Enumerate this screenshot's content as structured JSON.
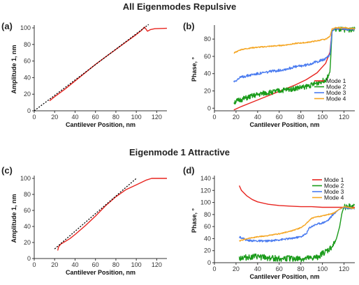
{
  "figure": {
    "top_title": "All Eigenmodes Repulsive",
    "bottom_title": "Eigenmode 1 Attractive"
  },
  "colors": {
    "mode1": "#e8241f",
    "mode2": "#1a9b1a",
    "mode3": "#4b7cf0",
    "mode4": "#f5a623",
    "guide": "#000000"
  },
  "chart_data": [
    {
      "id": "a",
      "panel_label": "(a)",
      "type": "line",
      "xlabel": "Cantilever Position, nm",
      "ylabel": "Amplitude 1, nm",
      "xlim": [
        0,
        130
      ],
      "ylim": [
        0,
        100
      ],
      "xticks": [
        "0",
        "20",
        "40",
        "60",
        "80",
        "100",
        "120"
      ],
      "yticks": [
        "0",
        "20",
        "40",
        "60",
        "80",
        "100"
      ],
      "grid": false,
      "series": [
        {
          "color": "#e8241f",
          "style": "solid",
          "x": [
            15,
            20,
            30,
            40,
            50,
            60,
            70,
            80,
            90,
            100,
            105,
            108,
            111,
            114,
            118,
            130
          ],
          "y": [
            12,
            17,
            26,
            36,
            46,
            56,
            65,
            74,
            83,
            92,
            97,
            101,
            96,
            98,
            99,
            99.5
          ]
        },
        {
          "color": "#000000",
          "style": "dotted",
          "x": [
            0,
            112
          ],
          "y": [
            0,
            104
          ]
        }
      ]
    },
    {
      "id": "b",
      "panel_label": "(b)",
      "type": "line",
      "xlabel": "Cantilever Position, nm",
      "ylabel": "Phase, °",
      "xlim": [
        0,
        130
      ],
      "ylim": [
        -3,
        93
      ],
      "xticks": [
        "0",
        "20",
        "40",
        "60",
        "80",
        "100",
        "120"
      ],
      "yticks": [
        "0",
        "20",
        "40",
        "60",
        "80"
      ],
      "grid": false,
      "legend_position": "bottom-right",
      "series": [
        {
          "name": "Mode 1",
          "color": "#e8241f",
          "x": [
            18,
            25,
            35,
            45,
            55,
            65,
            75,
            85,
            95,
            103,
            107,
            109,
            112,
            120,
            130
          ],
          "y": [
            -2,
            2,
            7,
            12,
            17,
            22,
            27,
            33,
            41,
            52,
            65,
            90,
            92,
            91,
            91
          ]
        },
        {
          "name": "Mode 2",
          "color": "#1a9b1a",
          "noise": 3,
          "x": [
            18,
            25,
            35,
            45,
            55,
            65,
            75,
            85,
            95,
            103,
            107,
            109,
            112,
            120,
            130
          ],
          "y": [
            7,
            10,
            14,
            17,
            19,
            21,
            23,
            25,
            29,
            33,
            42,
            90,
            91,
            91,
            91
          ]
        },
        {
          "name": "Mode 3",
          "color": "#4b7cf0",
          "noise": 1.5,
          "x": [
            18,
            25,
            35,
            45,
            55,
            65,
            75,
            85,
            95,
            103,
            107,
            109,
            112,
            120,
            130
          ],
          "y": [
            31,
            36,
            39,
            41,
            43,
            45,
            48,
            50,
            54,
            57,
            62,
            89,
            92,
            92,
            91
          ]
        },
        {
          "name": "Mode 4",
          "color": "#f5a623",
          "noise": 0.6,
          "x": [
            18,
            25,
            35,
            45,
            55,
            65,
            75,
            85,
            95,
            103,
            107,
            109,
            112,
            120,
            130
          ],
          "y": [
            64,
            68,
            70,
            71,
            72,
            73,
            75,
            76,
            78,
            80,
            83,
            92,
            93,
            93,
            92
          ]
        }
      ]
    },
    {
      "id": "c",
      "panel_label": "(c)",
      "type": "line",
      "xlabel": "Cantilever Position, nm",
      "ylabel": "Amplitude 1, nm",
      "xlim": [
        0,
        130
      ],
      "ylim": [
        0,
        100
      ],
      "xticks": [
        "0",
        "20",
        "40",
        "60",
        "80",
        "100",
        "120"
      ],
      "yticks": [
        "0",
        "20",
        "40",
        "60",
        "80",
        "100"
      ],
      "grid": false,
      "series": [
        {
          "color": "#e8241f",
          "style": "solid",
          "x": [
            23,
            24,
            26,
            30,
            35,
            40,
            50,
            60,
            70,
            80,
            90,
            100,
            105,
            110,
            115,
            120,
            130
          ],
          "y": [
            10,
            15,
            18,
            21,
            25,
            30,
            41,
            53,
            66,
            77,
            86,
            92,
            95,
            98,
            100,
            100,
            100
          ]
        },
        {
          "color": "#000000",
          "style": "dotted",
          "x": [
            20,
            100
          ],
          "y": [
            12,
            100
          ]
        }
      ]
    },
    {
      "id": "d",
      "panel_label": "(d)",
      "type": "line",
      "xlabel": "Cantilever Position, nm",
      "ylabel": "Phase, °",
      "xlim": [
        0,
        130
      ],
      "ylim": [
        0,
        140
      ],
      "xticks": [
        "0",
        "20",
        "40",
        "60",
        "80",
        "100",
        "120"
      ],
      "yticks": [
        "0",
        "20",
        "40",
        "60",
        "80",
        "100",
        "120",
        "140"
      ],
      "grid": false,
      "legend_position": "top-right",
      "series": [
        {
          "name": "Mode 1",
          "color": "#e8241f",
          "x": [
            23,
            25,
            30,
            35,
            40,
            50,
            60,
            70,
            80,
            90,
            100,
            110,
            120,
            130
          ],
          "y": [
            128,
            120,
            111,
            105,
            101,
            97,
            95,
            94,
            93,
            93,
            92,
            92,
            92,
            92
          ]
        },
        {
          "name": "Mode 2",
          "color": "#1a9b1a",
          "noise": 5,
          "x": [
            23,
            30,
            40,
            50,
            60,
            70,
            80,
            90,
            95,
            100,
            105,
            110,
            113,
            116,
            118,
            120,
            130
          ],
          "y": [
            8,
            9,
            10,
            8,
            7,
            7,
            6,
            7,
            9,
            15,
            20,
            28,
            40,
            60,
            82,
            93,
            93
          ]
        },
        {
          "name": "Mode 3",
          "color": "#4b7cf0",
          "noise": 1.5,
          "x": [
            23,
            26,
            30,
            40,
            50,
            60,
            70,
            80,
            85,
            88,
            92,
            95,
            100,
            105,
            110,
            115,
            120,
            130
          ],
          "y": [
            43,
            41,
            37,
            36,
            36,
            38,
            40,
            43,
            48,
            58,
            62,
            64,
            66,
            70,
            80,
            88,
            92,
            90
          ]
        },
        {
          "name": "Mode 4",
          "color": "#f5a623",
          "noise": 0.8,
          "x": [
            23,
            30,
            40,
            50,
            60,
            70,
            80,
            85,
            90,
            100,
            110,
            115,
            120,
            130
          ],
          "y": [
            36,
            40,
            43,
            45,
            48,
            52,
            58,
            65,
            74,
            78,
            82,
            88,
            93,
            90
          ]
        }
      ]
    }
  ]
}
